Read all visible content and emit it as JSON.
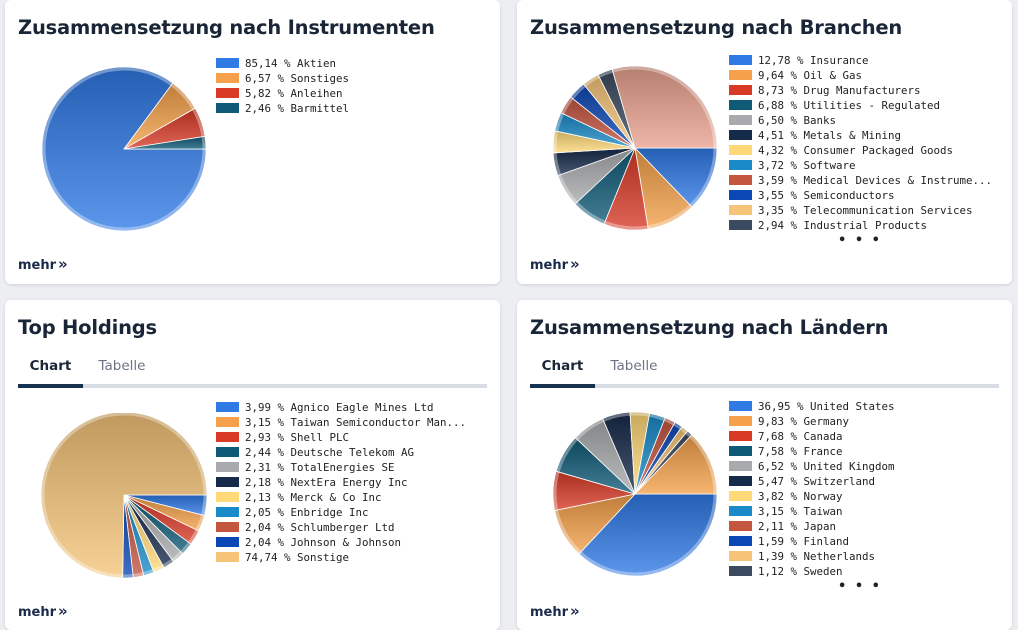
{
  "cards": {
    "instruments": {
      "title": "Zusammensetzung nach Instrumenten",
      "mehr": "mehr",
      "legend": [
        {
          "label": "85,14 % Aktien",
          "value": 85.14,
          "color": "#2f7ae5"
        },
        {
          "label": "6,57 % Sonstiges",
          "value": 6.57,
          "color": "#f5a04a"
        },
        {
          "label": "5,82 % Anleihen",
          "value": 5.82,
          "color": "#d93a26"
        },
        {
          "label": "2,46 % Barmittel",
          "value": 2.46,
          "color": "#0f5a77"
        }
      ]
    },
    "branches": {
      "title": "Zusammensetzung nach Branchen",
      "mehr": "mehr",
      "more_indicator": "• • •",
      "legend": [
        {
          "label": "12,78 % Insurance",
          "value": 12.78,
          "color": "#2f7ae5"
        },
        {
          "label": "9,64 % Oil & Gas",
          "value": 9.64,
          "color": "#f5a04a"
        },
        {
          "label": "8,73 % Drug Manufacturers",
          "value": 8.73,
          "color": "#d93a26"
        },
        {
          "label": "6,88 % Utilities - Regulated",
          "value": 6.88,
          "color": "#0f5a77"
        },
        {
          "label": "6,50 % Banks",
          "value": 6.5,
          "color": "#a9aaad"
        },
        {
          "label": "4,51 % Metals & Mining",
          "value": 4.51,
          "color": "#162a4a"
        },
        {
          "label": "4,32 % Consumer Packaged Goods",
          "value": 4.32,
          "color": "#ffd978"
        },
        {
          "label": "3,72 % Software",
          "value": 3.72,
          "color": "#1a8ac9"
        },
        {
          "label": "3,59 % Medical Devices & Instrume...",
          "value": 3.59,
          "color": "#c4553f"
        },
        {
          "label": "3,55 % Semiconductors",
          "value": 3.55,
          "color": "#0b48b5"
        },
        {
          "label": "3,35 % Telecommunication Services",
          "value": 3.35,
          "color": "#f5c478"
        },
        {
          "label": "2,94 % Industrial Products",
          "value": 2.94,
          "color": "#3b4a5e"
        }
      ],
      "rest": {
        "value": 29.49,
        "color": "#e8a28e"
      }
    },
    "holdings": {
      "title": "Top Holdings",
      "mehr": "mehr",
      "tabs": [
        "Chart",
        "Tabelle"
      ],
      "active_tab": "Chart",
      "legend": [
        {
          "label": "3,99 % Agnico Eagle Mines Ltd",
          "value": 3.99,
          "color": "#2f7ae5"
        },
        {
          "label": "3,15 % Taiwan Semiconductor Man...",
          "value": 3.15,
          "color": "#f5a04a"
        },
        {
          "label": "2,93 % Shell PLC",
          "value": 2.93,
          "color": "#d93a26"
        },
        {
          "label": "2,44 % Deutsche Telekom AG",
          "value": 2.44,
          "color": "#0f5a77"
        },
        {
          "label": "2,31 % TotalEnergies SE",
          "value": 2.31,
          "color": "#a9aaad"
        },
        {
          "label": "2,18 % NextEra Energy Inc",
          "value": 2.18,
          "color": "#162a4a"
        },
        {
          "label": "2,13 % Merck & Co Inc",
          "value": 2.13,
          "color": "#ffd978"
        },
        {
          "label": "2,05 % Enbridge Inc",
          "value": 2.05,
          "color": "#1a8ac9"
        },
        {
          "label": "2,04 % Schlumberger Ltd",
          "value": 2.04,
          "color": "#c4553f"
        },
        {
          "label": "2,04 % Johnson & Johnson",
          "value": 2.04,
          "color": "#0b48b5"
        },
        {
          "label": "74,74 % Sonstige",
          "value": 74.74,
          "color": "#f5c478"
        }
      ]
    },
    "countries": {
      "title": "Zusammensetzung nach Ländern",
      "mehr": "mehr",
      "more_indicator": "• • •",
      "tabs": [
        "Chart",
        "Tabelle"
      ],
      "active_tab": "Chart",
      "legend": [
        {
          "label": "36,95 % United States",
          "value": 36.95,
          "color": "#2f7ae5"
        },
        {
          "label": "9,83 % Germany",
          "value": 9.83,
          "color": "#f5a04a"
        },
        {
          "label": "7,68 % Canada",
          "value": 7.68,
          "color": "#d93a26"
        },
        {
          "label": "7,58 % France",
          "value": 7.58,
          "color": "#0f5a77"
        },
        {
          "label": "6,52 % United Kingdom",
          "value": 6.52,
          "color": "#a9aaad"
        },
        {
          "label": "5,47 % Switzerland",
          "value": 5.47,
          "color": "#162a4a"
        },
        {
          "label": "3,82 % Norway",
          "value": 3.82,
          "color": "#ffd978"
        },
        {
          "label": "3,15 % Taiwan",
          "value": 3.15,
          "color": "#1a8ac9"
        },
        {
          "label": "2,11 % Japan",
          "value": 2.11,
          "color": "#c4553f"
        },
        {
          "label": "1,59 % Finland",
          "value": 1.59,
          "color": "#0b48b5"
        },
        {
          "label": "1,39 % Netherlands",
          "value": 1.39,
          "color": "#f5c478"
        },
        {
          "label": "1,12 % Sweden",
          "value": 1.12,
          "color": "#3b4a5e"
        }
      ],
      "rest": {
        "value": 12.79,
        "color": "#f5a04a"
      }
    }
  }
}
